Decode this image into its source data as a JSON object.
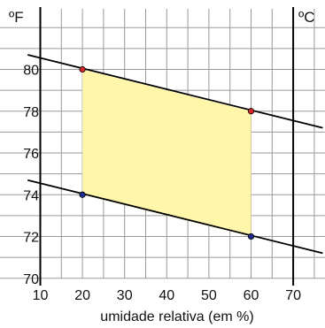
{
  "chart_data": {
    "type": "line",
    "xlabel": "umidade relativa (em %)",
    "left_unit": "ºF",
    "right_unit": "ºC",
    "xlim": [
      10,
      77
    ],
    "ylim": [
      70,
      83
    ],
    "x_ticks": [
      10,
      20,
      30,
      40,
      50,
      60,
      70
    ],
    "y_ticks": [
      70,
      72,
      74,
      76,
      78,
      80
    ],
    "grid": true,
    "series": [
      {
        "x": [
          7,
          77
        ],
        "y": [
          80.7,
          77.2
        ],
        "line_color": "#000000"
      },
      {
        "x": [
          7,
          77
        ],
        "y": [
          74.7,
          71.2
        ],
        "line_color": "#000000"
      }
    ],
    "points": [
      {
        "x": 20,
        "y": 80,
        "color": "#d62728"
      },
      {
        "x": 60,
        "y": 78,
        "color": "#d62728"
      },
      {
        "x": 20,
        "y": 74,
        "color": "#1f2b8f"
      },
      {
        "x": 60,
        "y": 72,
        "color": "#1f2b8f"
      }
    ],
    "region": {
      "x": [
        20,
        60,
        60,
        20
      ],
      "y": [
        80,
        78,
        72,
        74
      ],
      "fill": "#fff6aa"
    },
    "vertical_lines": [
      {
        "x": 10
      },
      {
        "x": 70
      }
    ]
  },
  "colors": {
    "grid": "#9a9a9a",
    "axis": "#000000",
    "region_fill": "#fff6aa",
    "point_red": "#d62728",
    "point_blue": "#1f2b8f"
  }
}
